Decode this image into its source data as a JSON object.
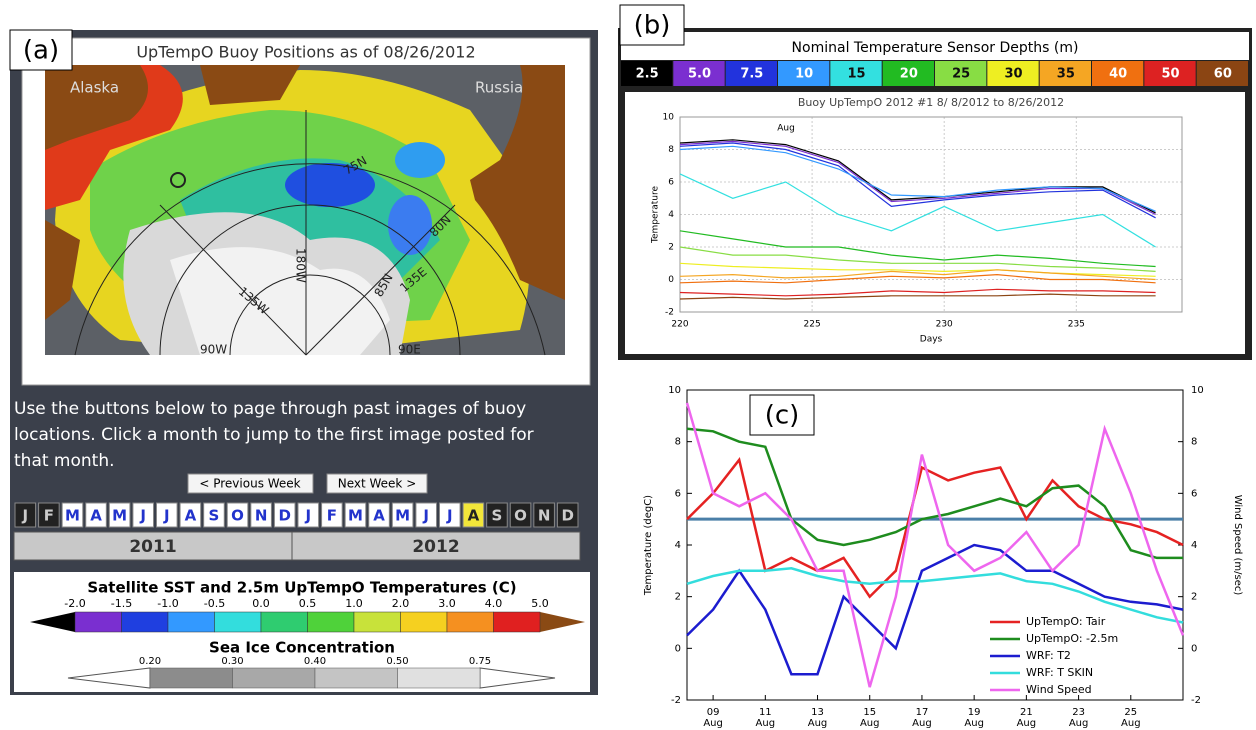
{
  "panel_a": {
    "label": "(a)",
    "map": {
      "title": "UpTempO Buoy Positions as of 08/26/2012",
      "labels": [
        "Alaska",
        "Russia",
        "75N",
        "80N",
        "85N",
        "135W",
        "135E",
        "180W",
        "90W",
        "90E"
      ]
    },
    "instructions": [
      "Use the buttons below to page through past images of buoy",
      "locations. Click a month to jump to the first image posted for",
      "that month."
    ],
    "buttons": [
      "< Previous Week",
      "Next Week >"
    ],
    "months": [
      {
        "label": "J",
        "available": false
      },
      {
        "label": "F",
        "available": false
      },
      {
        "label": "M"
      },
      {
        "label": "A"
      },
      {
        "label": "M"
      },
      {
        "label": "J"
      },
      {
        "label": "J"
      },
      {
        "label": "A"
      },
      {
        "label": "S"
      },
      {
        "label": "O"
      },
      {
        "label": "N"
      },
      {
        "label": "D"
      },
      {
        "label": "J"
      },
      {
        "label": "F"
      },
      {
        "label": "M"
      },
      {
        "label": "A"
      },
      {
        "label": "M"
      },
      {
        "label": "J"
      },
      {
        "label": "J"
      },
      {
        "label": "A",
        "active": true
      },
      {
        "label": "S",
        "available": false
      },
      {
        "label": "O",
        "available": false
      },
      {
        "label": "N",
        "available": false
      },
      {
        "label": "D",
        "available": false
      }
    ],
    "years": [
      "2011",
      "2012"
    ],
    "sst_colorbar": {
      "title": "Satellite SST and 2.5m UpTempO Temperatures (C)",
      "ticks": [
        "-2.0",
        "-1.5",
        "-1.0",
        "-0.5",
        "0.0",
        "0.5",
        "1.0",
        "2.0",
        "3.0",
        "4.0",
        "5.0"
      ]
    },
    "ice_colorbar": {
      "title": "Sea Ice Concentration",
      "ticks": [
        "0.20",
        "0.30",
        "0.40",
        "0.50",
        "0.75"
      ]
    }
  },
  "chart_data": [
    {
      "type": "line",
      "panel_label": "(b)",
      "legend_title": "Nominal Temperature Sensor Depths (m)",
      "title": "Buoy UpTempO 2012 #1  8/ 8/2012 to  8/26/2012",
      "annotation": "Aug",
      "x_label": "Days",
      "y_label": "Temperature",
      "x": [
        220,
        222,
        224,
        226,
        228,
        230,
        232,
        234,
        236,
        238
      ],
      "xlim": [
        220,
        239
      ],
      "xticks": [
        220,
        225,
        230,
        235
      ],
      "ylim": [
        -2,
        10
      ],
      "yticks": [
        -2,
        0,
        2,
        4,
        6,
        8,
        10
      ],
      "grid": true,
      "series": [
        {
          "name": "2.5",
          "color": "#000000",
          "values": [
            8.4,
            8.6,
            8.3,
            7.3,
            4.9,
            5.1,
            5.4,
            5.7,
            5.7,
            4.1
          ]
        },
        {
          "name": "5.0",
          "color": "#7b2fd0",
          "values": [
            8.3,
            8.5,
            8.2,
            7.2,
            4.8,
            5.0,
            5.3,
            5.6,
            5.6,
            4.0
          ]
        },
        {
          "name": "7.5",
          "color": "#2233dd",
          "values": [
            8.2,
            8.4,
            8.0,
            7.0,
            4.5,
            4.9,
            5.2,
            5.4,
            5.5,
            3.8
          ]
        },
        {
          "name": "10",
          "color": "#3399ff",
          "values": [
            8.0,
            8.2,
            7.8,
            6.8,
            5.2,
            5.1,
            5.5,
            5.7,
            5.6,
            4.2
          ]
        },
        {
          "name": "15",
          "color": "#33e0e0",
          "values": [
            6.5,
            5.0,
            6.0,
            4.0,
            3.0,
            4.5,
            3.0,
            3.5,
            4.0,
            2.0
          ]
        },
        {
          "name": "20",
          "color": "#22bb22",
          "values": [
            3.0,
            2.5,
            2.0,
            2.0,
            1.5,
            1.2,
            1.5,
            1.3,
            1.0,
            0.8
          ]
        },
        {
          "name": "25",
          "color": "#88dd44",
          "values": [
            2.0,
            1.5,
            1.5,
            1.2,
            1.0,
            1.0,
            1.0,
            0.8,
            0.7,
            0.5
          ]
        },
        {
          "name": "30",
          "color": "#eeee22",
          "values": [
            1.0,
            0.8,
            0.7,
            0.6,
            0.6,
            0.5,
            0.6,
            0.4,
            0.3,
            0.2
          ]
        },
        {
          "name": "35",
          "color": "#f5a623",
          "values": [
            0.2,
            0.3,
            0.1,
            0.2,
            0.5,
            0.3,
            0.6,
            0.4,
            0.2,
            0.0
          ]
        },
        {
          "name": "40",
          "color": "#f07010",
          "values": [
            -0.2,
            -0.1,
            -0.2,
            0.0,
            0.2,
            0.1,
            0.3,
            0.0,
            0.0,
            -0.2
          ]
        },
        {
          "name": "50",
          "color": "#dd2222",
          "values": [
            -0.8,
            -0.9,
            -1.0,
            -0.9,
            -0.7,
            -0.8,
            -0.6,
            -0.7,
            -0.7,
            -0.8
          ]
        },
        {
          "name": "60",
          "color": "#8b4513",
          "values": [
            -1.2,
            -1.1,
            -1.2,
            -1.1,
            -1.0,
            -1.0,
            -1.0,
            -0.9,
            -1.0,
            -1.0
          ]
        }
      ]
    },
    {
      "type": "line",
      "panel_label": "(c)",
      "y_label": "Temperature (degC)",
      "y2_label": "Wind Speed (m/sec)",
      "xtick_sublabel": "Aug",
      "hline": 5,
      "x": [
        8,
        9,
        10,
        11,
        12,
        13,
        14,
        15,
        16,
        17,
        18,
        19,
        20,
        21,
        22,
        23,
        24,
        25,
        26,
        27
      ],
      "xlim": [
        8,
        27
      ],
      "xticks": [
        {
          "value": 9,
          "label": "09"
        },
        {
          "value": 11,
          "label": "11"
        },
        {
          "value": 13,
          "label": "13"
        },
        {
          "value": 15,
          "label": "15"
        },
        {
          "value": 17,
          "label": "17"
        },
        {
          "value": 19,
          "label": "19"
        },
        {
          "value": 21,
          "label": "21"
        },
        {
          "value": 23,
          "label": "23"
        },
        {
          "value": 25,
          "label": "25"
        }
      ],
      "ylim": [
        -2,
        10
      ],
      "yticks": [
        -2,
        0,
        2,
        4,
        6,
        8,
        10
      ],
      "y2lim": [
        -2,
        10
      ],
      "y2ticks": [
        -2,
        0,
        2,
        4,
        6,
        8,
        10
      ],
      "grid": false,
      "series": [
        {
          "name": "UpTempO: Tair",
          "color": "#e52222",
          "values": [
            5.0,
            6.0,
            7.3,
            3.0,
            3.5,
            3.0,
            3.5,
            2.0,
            3.0,
            7.0,
            6.5,
            6.8,
            7.0,
            5.0,
            6.5,
            5.5,
            5.0,
            4.8,
            4.5,
            4.0
          ]
        },
        {
          "name": "UpTempO: -2.5m",
          "color": "#1e8c1e",
          "values": [
            8.5,
            8.4,
            8.0,
            7.8,
            5.0,
            4.2,
            4.0,
            4.2,
            4.5,
            5.0,
            5.2,
            5.5,
            5.8,
            5.5,
            6.2,
            6.3,
            5.5,
            3.8,
            3.5,
            3.5
          ]
        },
        {
          "name": "WRF: T2",
          "color": "#1c1ccf",
          "values": [
            0.5,
            1.5,
            3.0,
            1.5,
            -1.0,
            -1.0,
            2.0,
            1.0,
            0.0,
            3.0,
            3.5,
            4.0,
            3.8,
            3.0,
            3.0,
            2.5,
            2.0,
            1.8,
            1.7,
            1.5
          ]
        },
        {
          "name": "WRF: T SKIN",
          "color": "#33dddd",
          "values": [
            2.5,
            2.8,
            3.0,
            3.0,
            3.1,
            2.8,
            2.6,
            2.5,
            2.6,
            2.6,
            2.7,
            2.8,
            2.9,
            2.6,
            2.5,
            2.2,
            1.8,
            1.5,
            1.2,
            1.0
          ]
        },
        {
          "name": "Wind Speed",
          "color": "#ee66ee",
          "axis": "y2",
          "values": [
            9.5,
            6.0,
            5.5,
            6.0,
            5.0,
            3.0,
            3.0,
            -1.5,
            2.0,
            7.5,
            4.0,
            3.0,
            3.5,
            4.5,
            3.0,
            4.0,
            8.5,
            6.0,
            3.0,
            0.5
          ]
        }
      ]
    }
  ]
}
